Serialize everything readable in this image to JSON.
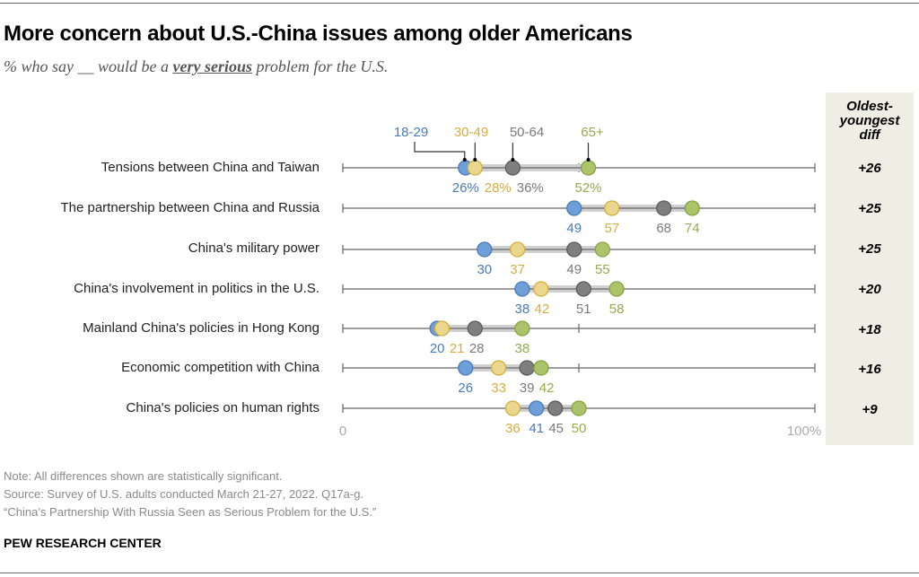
{
  "title": "More concern about U.S.-China issues among older Americans",
  "subtitle": {
    "prefix": "% who say __ would be a ",
    "emphasis": "very serious",
    "suffix": " problem for the U.S."
  },
  "diff_header": [
    "Oldest-",
    "youngest",
    "diff"
  ],
  "colors": {
    "18-29": "#6f9fd8",
    "30-49": "#ebd68e",
    "50-64": "#7f7f7f",
    "65+": "#abc46a",
    "label_18-29": "#4a7ab8",
    "label_30-49": "#d4ae3c",
    "label_50-64": "#7a7a7a",
    "label_65+": "#93ab4f"
  },
  "chart_data": {
    "type": "dot",
    "title": "More concern about U.S.-China issues among older Americans",
    "subtitle": "% who say __ would be a very serious problem for the U.S.",
    "xlim": [
      0,
      100
    ],
    "x_tick_labels": [
      "0",
      "100%"
    ],
    "legend": [
      "18-29",
      "30-49",
      "50-64",
      "65+"
    ],
    "legend_placement": "top, above first row",
    "categories": [
      "Tensions between China and Taiwan",
      "The partnership between China and Russia",
      "China's military power",
      "China's involvement in politics in the U.S.",
      "Mainland China's policies in Hong Kong",
      "Economic competition with China",
      "China's policies on human rights"
    ],
    "series": [
      {
        "name": "18-29",
        "values": [
          26,
          49,
          30,
          38,
          20,
          26,
          41
        ]
      },
      {
        "name": "30-49",
        "values": [
          28,
          57,
          37,
          42,
          21,
          33,
          36
        ]
      },
      {
        "name": "50-64",
        "values": [
          36,
          68,
          49,
          51,
          28,
          39,
          45
        ]
      },
      {
        "name": "65+",
        "values": [
          52,
          74,
          55,
          58,
          38,
          42,
          50
        ]
      }
    ],
    "first_row_labels": [
      "26%",
      "28%",
      "36%",
      "52%"
    ],
    "diff": [
      "+26",
      "+25",
      "+25",
      "+20",
      "+18",
      "+16",
      "+9"
    ]
  },
  "footer": {
    "note": "Note: All differences shown are statistically significant.",
    "source": "Source: Survey of U.S. adults conducted March 21-27, 2022. Q17a-g.",
    "report": "“China’s Partnership With Russia Seen as Serious Problem for the U.S.”",
    "brand": "PEW RESEARCH CENTER"
  }
}
